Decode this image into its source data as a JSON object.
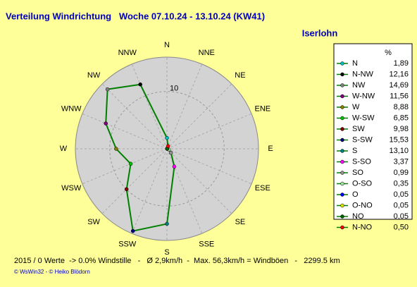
{
  "chart_data": {
    "type": "radar",
    "title": "Verteilung Windrichtung   Woche 07.10.24 - 13.10.24 (KW41)",
    "subtitle": "Iserlohn",
    "directions": [
      "N",
      "NNE",
      "NE",
      "ENE",
      "E",
      "ESE",
      "SE",
      "SSE",
      "S",
      "SSW",
      "SW",
      "WSW",
      "W",
      "WNW",
      "NW",
      "NNW"
    ],
    "rlim": [
      0,
      16
    ],
    "rticks": [
      10
    ],
    "line_color": "#008000",
    "legend_header": "%",
    "series": [
      {
        "name": "N",
        "color": "#00c0c0",
        "values": [
          1.89
        ],
        "value_labels": [
          "1,89"
        ]
      },
      {
        "name": "N-NW",
        "color": "#000000",
        "values": [
          12.16
        ],
        "value_labels": [
          "12,16"
        ]
      },
      {
        "name": "NW",
        "color": "#808080",
        "values": [
          14.69
        ],
        "value_labels": [
          "14,69"
        ]
      },
      {
        "name": "W-NW",
        "color": "#800080",
        "values": [
          11.56
        ],
        "value_labels": [
          "11,56"
        ]
      },
      {
        "name": "W",
        "color": "#808000",
        "values": [
          8.88
        ],
        "value_labels": [
          "8,88"
        ]
      },
      {
        "name": "W-SW",
        "color": "#00c000",
        "values": [
          6.85
        ],
        "value_labels": [
          "6,85"
        ]
      },
      {
        "name": "SW",
        "color": "#800000",
        "values": [
          9.98
        ],
        "value_labels": [
          "9,98"
        ]
      },
      {
        "name": "S-SW",
        "color": "#000080",
        "values": [
          15.53
        ],
        "value_labels": [
          "15,53"
        ]
      },
      {
        "name": "S",
        "color": "#008080",
        "values": [
          13.1
        ],
        "value_labels": [
          "13,10"
        ]
      },
      {
        "name": "S-SO",
        "color": "#ff00ff",
        "values": [
          3.37
        ],
        "value_labels": [
          "3,37"
        ]
      },
      {
        "name": "SO",
        "color": "#909090",
        "values": [
          0.99
        ],
        "value_labels": [
          "0,99"
        ]
      },
      {
        "name": "O-SO",
        "color": "#a0e0a0",
        "values": [
          0.35
        ],
        "value_labels": [
          "0,35"
        ]
      },
      {
        "name": "O",
        "color": "#0000ff",
        "values": [
          0.05
        ],
        "value_labels": [
          "0,05"
        ]
      },
      {
        "name": "O-NO",
        "color": "#e0e000",
        "values": [
          0.05
        ],
        "value_labels": [
          "0,05"
        ]
      },
      {
        "name": "NO",
        "color": "#006000",
        "values": [
          0.05
        ],
        "value_labels": [
          "0,05"
        ]
      },
      {
        "name": "N-NO",
        "color": "#ff0000",
        "values": [
          0.5
        ],
        "value_labels": [
          "0,50"
        ]
      }
    ],
    "footer": "2015 / 0 Werte  -> 0.0% Windstille   -   Ø 2,9km/h  -  Max. 56,3km/h = Windböen   -   2299.5 km",
    "copyright": "© WsWin32  -  © Heiko Blödorn"
  }
}
